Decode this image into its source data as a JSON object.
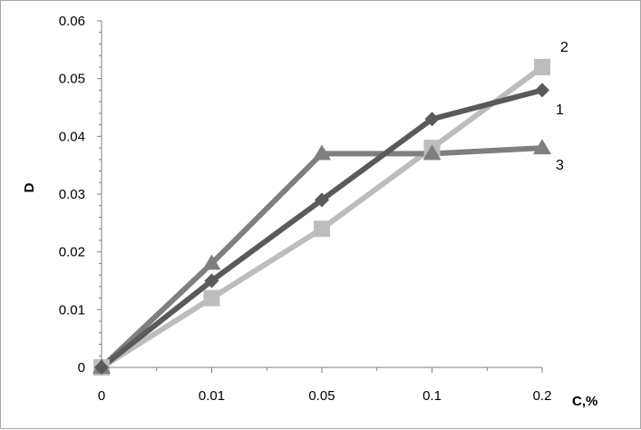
{
  "chart_data": {
    "type": "line",
    "categories": [
      "0",
      "0.01",
      "0.05",
      "0.1",
      "0.2"
    ],
    "xlabel": "C,%",
    "ylabel": "D",
    "ylim": [
      0,
      0.06
    ],
    "y_ticks": [
      "0",
      "0.01",
      "0.02",
      "0.03",
      "0.04",
      "0.05",
      "0.06"
    ],
    "grid": false,
    "legend": "none",
    "series": [
      {
        "label": "1",
        "marker": "diamond",
        "color": "#5a5a5a",
        "values": [
          0,
          0.015,
          0.029,
          0.043,
          0.048
        ]
      },
      {
        "label": "2",
        "marker": "square",
        "color": "#bdbdbd",
        "values": [
          0,
          0.012,
          0.024,
          0.038,
          0.052
        ]
      },
      {
        "label": "3",
        "marker": "triangle",
        "color": "#7f7f7f",
        "values": [
          0,
          0.018,
          0.037,
          0.037,
          0.038
        ]
      }
    ]
  }
}
